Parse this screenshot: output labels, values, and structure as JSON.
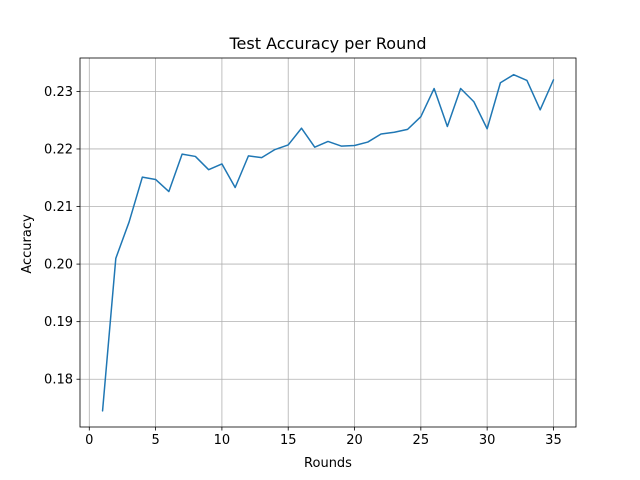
{
  "chart_data": {
    "type": "line",
    "title": "Test Accuracy per Round",
    "xlabel": "Rounds",
    "ylabel": "Accuracy",
    "xlim": [
      -0.7,
      36.7
    ],
    "ylim": [
      0.1717,
      0.2358
    ],
    "xticks": [
      0,
      5,
      10,
      15,
      20,
      25,
      30,
      35
    ],
    "yticks": [
      0.18,
      0.19,
      0.2,
      0.21,
      0.22,
      0.23
    ],
    "ytick_labels": [
      "0.18",
      "0.19",
      "0.20",
      "0.21",
      "0.22",
      "0.23"
    ],
    "grid": true,
    "line_color": "#1f77b4",
    "series": [
      {
        "x": [
          1,
          2,
          3,
          4,
          5,
          6,
          7,
          8,
          9,
          10,
          11,
          12,
          13,
          14,
          15,
          16,
          17,
          18,
          19,
          20,
          21,
          22,
          23,
          24,
          25,
          26,
          27,
          28,
          29,
          30,
          31,
          32,
          33,
          34,
          35
        ],
        "values": [
          0.1745,
          0.201,
          0.2073,
          0.2151,
          0.2147,
          0.2126,
          0.2191,
          0.2187,
          0.2164,
          0.2174,
          0.2133,
          0.2188,
          0.2185,
          0.2199,
          0.2207,
          0.2236,
          0.2203,
          0.2213,
          0.2205,
          0.2206,
          0.2212,
          0.2226,
          0.2229,
          0.2234,
          0.2256,
          0.2305,
          0.2239,
          0.2305,
          0.2282,
          0.2235,
          0.2315,
          0.2329,
          0.2319,
          0.2268,
          0.232
        ]
      }
    ]
  }
}
